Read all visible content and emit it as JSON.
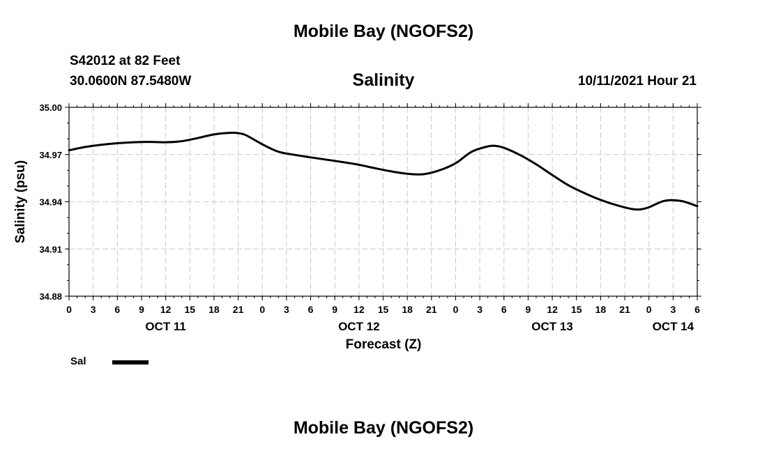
{
  "page": {
    "top_title": "Mobile Bay (NGOFS2)",
    "bottom_title": "Mobile Bay (NGOFS2)",
    "station": "S42012 at 82 Feet",
    "coordinates": "30.0600N  87.5480W",
    "run_time": "10/11/2021 Hour 21"
  },
  "chart_data": {
    "type": "line",
    "title": "Salinity",
    "xlabel": "Forecast (Z)",
    "ylabel": "Salinity (psu)",
    "ylim": [
      34.88,
      35.0
    ],
    "xlim": [
      0,
      78
    ],
    "x_unit": "hours from 00Z Oct 11",
    "yticks": [
      "35.00",
      "34.97",
      "34.94",
      "34.91",
      "34.88"
    ],
    "xtick_labels": [
      "0",
      "3",
      "6",
      "9",
      "12",
      "15",
      "18",
      "21",
      "0",
      "3",
      "6",
      "9",
      "12",
      "15",
      "18",
      "21",
      "0",
      "3",
      "6",
      "9",
      "12",
      "15",
      "18",
      "21",
      "0",
      "3",
      "6"
    ],
    "day_labels": [
      {
        "label": "OCT 11",
        "hour": 12
      },
      {
        "label": "OCT 12",
        "hour": 36
      },
      {
        "label": "OCT 13",
        "hour": 60
      },
      {
        "label": "OCT 14",
        "hour": 75
      }
    ],
    "grid": true,
    "legend": {
      "position": "bottom-left",
      "entries": [
        {
          "label": "Sal",
          "color": "#000000"
        }
      ]
    },
    "series": [
      {
        "name": "Sal",
        "color": "#000000",
        "x": [
          0,
          2,
          4,
          6,
          8,
          10,
          12,
          14,
          16,
          18,
          20,
          21,
          22,
          24,
          26,
          28,
          30,
          32,
          34,
          36,
          38,
          40,
          42,
          44,
          46,
          48,
          50,
          52,
          53,
          54,
          56,
          58,
          60,
          62,
          64,
          66,
          68,
          70,
          71,
          72,
          74,
          76,
          78
        ],
        "y": [
          34.9727,
          34.9748,
          34.9762,
          34.9772,
          34.9778,
          34.978,
          34.9778,
          34.9785,
          34.9805,
          34.9828,
          34.9838,
          34.9836,
          34.9822,
          34.9765,
          34.9718,
          34.9698,
          34.9682,
          34.9667,
          34.9652,
          34.9635,
          34.9613,
          34.9593,
          34.9578,
          34.9575,
          34.96,
          34.9645,
          34.9718,
          34.9752,
          34.9755,
          34.9743,
          34.9697,
          34.9638,
          34.957,
          34.9505,
          34.9455,
          34.9412,
          34.9378,
          34.9353,
          34.9352,
          34.9365,
          34.9407,
          34.9405,
          34.9372
        ]
      }
    ]
  }
}
